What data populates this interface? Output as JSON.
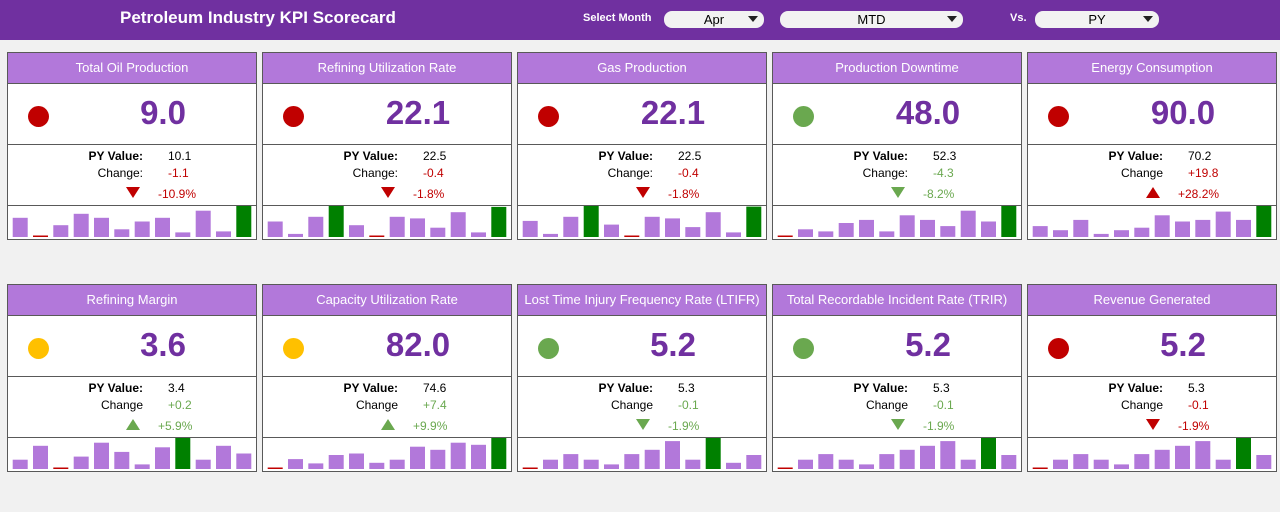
{
  "header": {
    "title": "Petroleum Industry KPI Scorecard",
    "select_month_label": "Select Month",
    "month": "Apr",
    "period": "MTD",
    "vs_label": "Vs.",
    "comparison": "PY"
  },
  "labels": {
    "py_value": "PY Value:",
    "change_colon": "Change:",
    "change": "Change"
  },
  "colors": {
    "header_bg": "#7030a0",
    "card_title_bg": "#b278da",
    "value_text": "#7030a0",
    "status_red": "#c00000",
    "status_green": "#6aa84f",
    "status_yellow": "#ffc000",
    "bar": "#b278da",
    "bar_current": "#008000",
    "bar_zero": "#c00000",
    "negative_text": "#c00000",
    "positive_text": "#6aa84f"
  },
  "kpis": [
    {
      "title": "Total Oil Production",
      "value": "9.0",
      "status": "red",
      "py": "10.1",
      "change": "-1.1",
      "pct": "-10.9%",
      "dir": "down",
      "trend_color": "red",
      "change_label_colon": true,
      "bars": [
        0.62,
        0,
        0.38,
        0.75,
        0.62,
        0.25,
        0.5,
        0.62,
        0.15,
        0.85,
        0.18,
        1.0
      ]
    },
    {
      "title": "Refining Utilization Rate",
      "value": "22.1",
      "status": "red",
      "py": "22.5",
      "change": "-0.4",
      "pct": "-1.8%",
      "dir": "down",
      "trend_color": "red",
      "change_label_colon": true,
      "bars": [
        0.5,
        0.1,
        0.65,
        1.0,
        0.38,
        0,
        0.65,
        0.6,
        0.3,
        0.8,
        0.15,
        0.97
      ]
    },
    {
      "title": "Gas Production",
      "value": "22.1",
      "status": "red",
      "py": "22.5",
      "change": "-0.4",
      "pct": "-1.8%",
      "dir": "down",
      "trend_color": "red",
      "change_label_colon": true,
      "bars": [
        0.52,
        0.1,
        0.65,
        1.0,
        0.4,
        0,
        0.65,
        0.6,
        0.32,
        0.8,
        0.15,
        0.98
      ]
    },
    {
      "title": "Production Downtime",
      "value": "48.0",
      "status": "green",
      "py": "52.3",
      "change": "-4.3",
      "pct": "-8.2%",
      "dir": "down",
      "trend_color": "green",
      "change_label_colon": true,
      "bars": [
        0,
        0.25,
        0.18,
        0.45,
        0.55,
        0.18,
        0.7,
        0.55,
        0.35,
        0.85,
        0.5,
        1.0
      ]
    },
    {
      "title": "Energy Consumption",
      "value": "90.0",
      "status": "red",
      "py": "70.2",
      "change": "+19.8",
      "pct": "+28.2%",
      "dir": "up",
      "trend_color": "red",
      "change_label_colon": false,
      "bars": [
        0.35,
        0.22,
        0.55,
        0.1,
        0.22,
        0.3,
        0.7,
        0.5,
        0.55,
        0.82,
        0.55,
        1.0
      ]
    },
    {
      "title": "Refining Margin",
      "value": "3.6",
      "status": "yellow",
      "py": "3.4",
      "change": "+0.2",
      "pct": "+5.9%",
      "dir": "up",
      "trend_color": "green",
      "change_label_colon": false,
      "bars": [
        0.3,
        0.75,
        0,
        0.4,
        0.85,
        0.55,
        0.15,
        0.7,
        1.0,
        0.3,
        0.75,
        0.5
      ]
    },
    {
      "title": "Capacity Utilization Rate",
      "value": "82.0",
      "status": "yellow",
      "py": "74.6",
      "change": "+7.4",
      "pct": "+9.9%",
      "dir": "up",
      "trend_color": "green",
      "change_label_colon": false,
      "bars": [
        0,
        0.32,
        0.18,
        0.45,
        0.5,
        0.2,
        0.3,
        0.72,
        0.62,
        0.85,
        0.78,
        1.0
      ]
    },
    {
      "title": "Lost Time Injury Frequency Rate (LTIFR)",
      "value": "5.2",
      "status": "green",
      "py": "5.3",
      "change": "-0.1",
      "pct": "-1.9%",
      "dir": "down",
      "trend_color": "green",
      "change_label_colon": false,
      "bars": [
        0,
        0.3,
        0.48,
        0.3,
        0.15,
        0.48,
        0.62,
        0.9,
        0.3,
        1.0,
        0.2,
        0.45
      ]
    },
    {
      "title": "Total Recordable Incident Rate (TRIR)",
      "value": "5.2",
      "status": "green",
      "py": "5.3",
      "change": "-0.1",
      "pct": "-1.9%",
      "dir": "down",
      "trend_color": "green",
      "change_label_colon": false,
      "bars": [
        0,
        0.3,
        0.48,
        0.3,
        0.15,
        0.48,
        0.62,
        0.75,
        0.9,
        0.3,
        1.0,
        0.45
      ]
    },
    {
      "title": "Revenue Generated",
      "value": "5.2",
      "status": "red",
      "py": "5.3",
      "change": "-0.1",
      "pct": "-1.9%",
      "dir": "down",
      "trend_color": "red",
      "change_label_colon": false,
      "bars": [
        0,
        0.3,
        0.48,
        0.3,
        0.15,
        0.48,
        0.62,
        0.75,
        0.9,
        0.3,
        1.0,
        0.45
      ]
    }
  ]
}
